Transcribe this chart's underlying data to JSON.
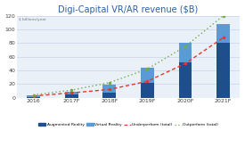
{
  "title": "Digi-Capital VR/AR revenue ($B)",
  "title_color": "#2e5fa3",
  "background_color": "#ffffff",
  "plot_bg_color": "#eaf0f8",
  "categories": [
    "2016",
    "2017F",
    "2018F",
    "2019F",
    "2020F",
    "2021F"
  ],
  "ar_values": [
    1.5,
    4.5,
    7,
    22,
    52,
    80
  ],
  "vr_values": [
    2,
    4,
    12,
    22,
    28,
    28
  ],
  "underperform": [
    2.5,
    7,
    12,
    24,
    50,
    88
  ],
  "outperform": [
    4,
    11,
    22,
    42,
    75,
    120
  ],
  "ar_color": "#1f4e8c",
  "vr_color": "#5b9bd5",
  "underperform_color": "#e8362a",
  "outperform_color": "#70ad47",
  "ylim": [
    0,
    120
  ],
  "yticks": [
    0,
    20,
    40,
    60,
    80,
    100,
    120
  ],
  "legend_labels": [
    "Augmented Reality",
    "Virtual Reality",
    "Underperform (total)",
    "Outperform (total)"
  ],
  "subtitle": "$ billions/year",
  "grid_color": "#c8d4e8"
}
